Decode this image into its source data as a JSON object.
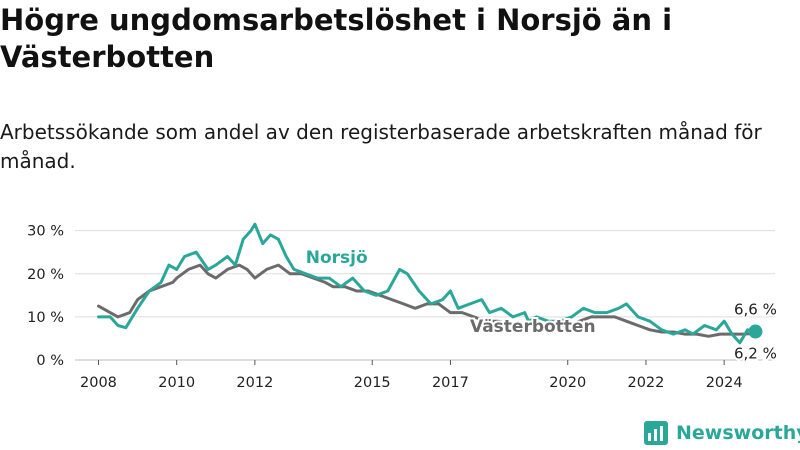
{
  "page": {
    "title": "Högre ungdomsarbetslöshet i Norsjö än i Västerbotten",
    "subtitle": "Arbetssökande som andel av den registerbaserade arbetskraften månad för månad.",
    "logo_text": "Newsworthy"
  },
  "colors": {
    "norsjo": "#2aa798",
    "vasterbotten": "#6b6b6b",
    "grid": "#dedede",
    "brand": "#2aa798"
  },
  "chart_data": {
    "type": "line",
    "title": "Högre ungdomsarbetslöshet i Norsjö än i Västerbotten",
    "subtitle": "Arbetssökande som andel av den registerbaserade arbetskraften månad för månad.",
    "xlabel": "",
    "ylabel": "",
    "xlim": [
      2007.4,
      2025.3
    ],
    "ylim": [
      0,
      32
    ],
    "x_ticks": [
      2008,
      2010,
      2012,
      2015,
      2017,
      2020,
      2022,
      2024
    ],
    "x_tick_labels": [
      "2008",
      "2010",
      "2012",
      "2015",
      "2017",
      "2020",
      "2022",
      "2024"
    ],
    "y_ticks": [
      0,
      10,
      20,
      30
    ],
    "y_tick_labels": [
      "0 %",
      "10 %",
      "20 %",
      "30 %"
    ],
    "grid": "horizontal",
    "legend": "direct labels on lines",
    "series": [
      {
        "name": "Norsjö",
        "color": "#2aa798",
        "points": [
          [
            2008.0,
            10
          ],
          [
            2008.3,
            10
          ],
          [
            2008.5,
            8
          ],
          [
            2008.7,
            7.5
          ],
          [
            2009.0,
            12
          ],
          [
            2009.3,
            16
          ],
          [
            2009.6,
            18
          ],
          [
            2009.8,
            22
          ],
          [
            2010.0,
            21
          ],
          [
            2010.2,
            24
          ],
          [
            2010.5,
            25
          ],
          [
            2010.8,
            21
          ],
          [
            2011.0,
            22
          ],
          [
            2011.3,
            24
          ],
          [
            2011.5,
            22
          ],
          [
            2011.7,
            28
          ],
          [
            2011.9,
            30
          ],
          [
            2012.0,
            31.5
          ],
          [
            2012.2,
            27
          ],
          [
            2012.4,
            29
          ],
          [
            2012.6,
            28
          ],
          [
            2012.8,
            24
          ],
          [
            2013.0,
            21
          ],
          [
            2013.3,
            20
          ],
          [
            2013.6,
            19
          ],
          [
            2013.9,
            19
          ],
          [
            2014.2,
            17
          ],
          [
            2014.5,
            19
          ],
          [
            2014.8,
            16
          ],
          [
            2015.1,
            15
          ],
          [
            2015.4,
            16
          ],
          [
            2015.7,
            21
          ],
          [
            2015.9,
            20
          ],
          [
            2016.2,
            16
          ],
          [
            2016.5,
            13
          ],
          [
            2016.8,
            14
          ],
          [
            2017.0,
            16
          ],
          [
            2017.2,
            12
          ],
          [
            2017.5,
            13
          ],
          [
            2017.8,
            14
          ],
          [
            2018.0,
            11
          ],
          [
            2018.3,
            12
          ],
          [
            2018.6,
            10
          ],
          [
            2018.9,
            11
          ],
          [
            2019.0,
            9
          ],
          [
            2019.2,
            10
          ],
          [
            2019.5,
            9
          ],
          [
            2019.8,
            9
          ],
          [
            2020.1,
            10
          ],
          [
            2020.4,
            12
          ],
          [
            2020.7,
            11
          ],
          [
            2021.0,
            11
          ],
          [
            2021.3,
            12
          ],
          [
            2021.5,
            13
          ],
          [
            2021.8,
            10
          ],
          [
            2022.1,
            9
          ],
          [
            2022.4,
            7
          ],
          [
            2022.7,
            6
          ],
          [
            2023.0,
            7
          ],
          [
            2023.2,
            6
          ],
          [
            2023.5,
            8
          ],
          [
            2023.8,
            7
          ],
          [
            2024.0,
            9
          ],
          [
            2024.2,
            6
          ],
          [
            2024.4,
            4
          ],
          [
            2024.6,
            7
          ],
          [
            2024.8,
            6.6
          ]
        ]
      },
      {
        "name": "Västerbotten",
        "color": "#6b6b6b",
        "points": [
          [
            2008.0,
            12.5
          ],
          [
            2008.2,
            11.5
          ],
          [
            2008.5,
            10
          ],
          [
            2008.8,
            11
          ],
          [
            2009.0,
            14
          ],
          [
            2009.3,
            16
          ],
          [
            2009.6,
            17
          ],
          [
            2009.9,
            18
          ],
          [
            2010.0,
            19
          ],
          [
            2010.3,
            21
          ],
          [
            2010.6,
            22
          ],
          [
            2010.8,
            20
          ],
          [
            2011.0,
            19
          ],
          [
            2011.3,
            21
          ],
          [
            2011.6,
            22
          ],
          [
            2011.8,
            21
          ],
          [
            2012.0,
            19
          ],
          [
            2012.3,
            21
          ],
          [
            2012.6,
            22
          ],
          [
            2012.9,
            20
          ],
          [
            2013.2,
            20
          ],
          [
            2013.5,
            19
          ],
          [
            2013.8,
            18
          ],
          [
            2014.0,
            17
          ],
          [
            2014.3,
            17
          ],
          [
            2014.6,
            16
          ],
          [
            2014.9,
            16
          ],
          [
            2015.2,
            15
          ],
          [
            2015.5,
            14
          ],
          [
            2015.8,
            13
          ],
          [
            2016.1,
            12
          ],
          [
            2016.4,
            13
          ],
          [
            2016.7,
            13
          ],
          [
            2017.0,
            11
          ],
          [
            2017.3,
            11
          ],
          [
            2017.6,
            10
          ],
          [
            2017.9,
            9
          ],
          [
            2018.2,
            9
          ],
          [
            2018.5,
            8.5
          ],
          [
            2018.8,
            8
          ],
          [
            2019.1,
            8
          ],
          [
            2019.4,
            8
          ],
          [
            2019.7,
            8
          ],
          [
            2020.0,
            8
          ],
          [
            2020.3,
            9
          ],
          [
            2020.6,
            10
          ],
          [
            2020.9,
            10
          ],
          [
            2021.2,
            10
          ],
          [
            2021.5,
            9
          ],
          [
            2021.8,
            8
          ],
          [
            2022.1,
            7
          ],
          [
            2022.4,
            6.5
          ],
          [
            2022.7,
            6.5
          ],
          [
            2023.0,
            6
          ],
          [
            2023.3,
            6
          ],
          [
            2023.6,
            5.5
          ],
          [
            2023.9,
            6
          ],
          [
            2024.2,
            6
          ],
          [
            2024.5,
            6
          ],
          [
            2024.8,
            6.2
          ]
        ]
      }
    ],
    "annotations": [
      {
        "text": "6,6 %",
        "series": "Norsjö",
        "x": 2024.8,
        "y": 6.6
      },
      {
        "text": "6,2 %",
        "series": "Västerbotten",
        "x": 2024.8,
        "y": 6.2
      }
    ]
  }
}
